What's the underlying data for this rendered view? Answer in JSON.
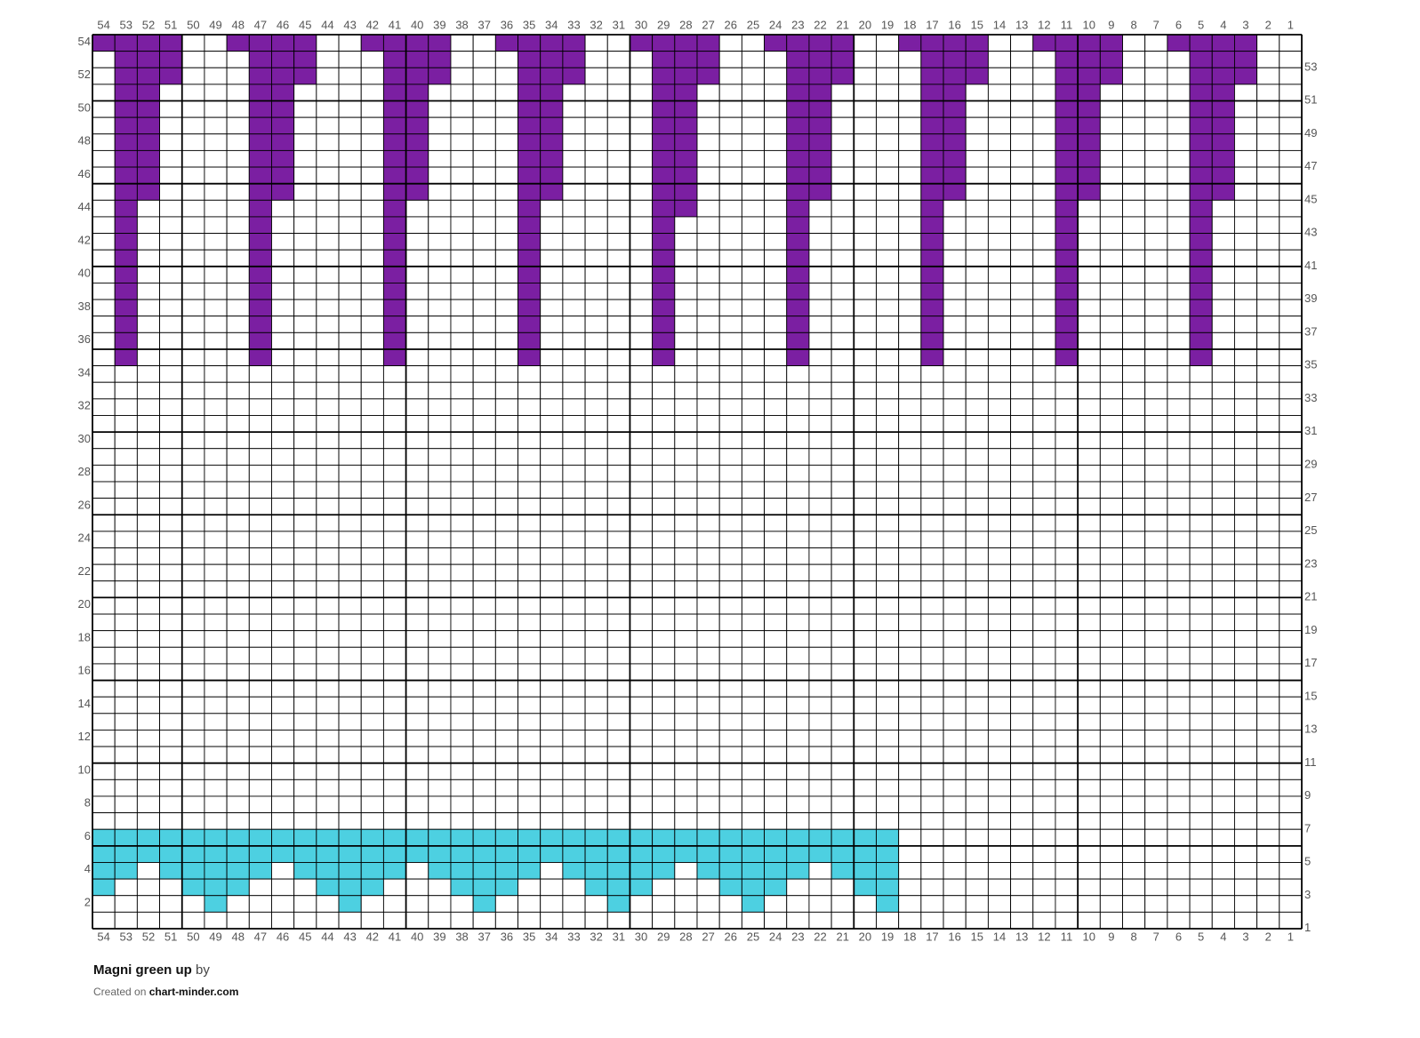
{
  "grid": {
    "col_labels": [
      54,
      53,
      52,
      51,
      50,
      49,
      48,
      47,
      46,
      45,
      44,
      43,
      42,
      41,
      40,
      39,
      38,
      37,
      36,
      35,
      34,
      33,
      32,
      31,
      30,
      29,
      28,
      27,
      26,
      25,
      24,
      23,
      22,
      21,
      20,
      19,
      18,
      17,
      16,
      15,
      14,
      13,
      12,
      11,
      10,
      9,
      8,
      7,
      6,
      5,
      4,
      3,
      2,
      1
    ],
    "row_labels": [
      54,
      53,
      52,
      51,
      50,
      49,
      48,
      47,
      46,
      45,
      44,
      43,
      42,
      41,
      40,
      39,
      38,
      37,
      36,
      35,
      34,
      33,
      32,
      31,
      30,
      29,
      28,
      27,
      26,
      25,
      24,
      23,
      22,
      21,
      20,
      19,
      18,
      17,
      16,
      15,
      14,
      13,
      12,
      11,
      10,
      9,
      8,
      7,
      6,
      5,
      4,
      3,
      2,
      1
    ],
    "colors": {
      "P": "#7b1fa2",
      "C": "#4dd0e1",
      ".": "#ffffff"
    },
    "rows": [
      "PPPP..PPPP..PPPP..PPPP..PPPP..PPPP..PPPP..PPPP..PPPP..",
      ".PPP...PPP...PPP...PPP...PPP...PPP...PPP...PPP...PPP..",
      ".PPP...PPP...PPP...PPP...PPP...PPP...PPP...PPP...PPP..",
      ".PP....PP....PP....PP....PP....PP....PP....PP....PP...",
      ".PP....PP....PP....PP....PP....PP....PP....PP....PP...",
      ".PP....PP....PP....PP....PP....PP....PP....PP....PP...",
      ".PP....PP....PP....PP....PP....PP....PP....PP....PP...",
      ".PP....PP....PP....PP....PP....PP....PP....PP....PP...",
      ".PP....PP....PP....PP....PP....PP....PP....PP....PP...",
      ".PP....PP....PP....PP....PP....PP....PP....PP....PP...",
      ".P.....P.....P.....P.....PP....P.....P.....P.....P....",
      ".P.....P.....P.....P.....P.....P.....P.....P.....P....",
      ".P.....P.....P.....P.....P.....P.....P.....P.....P....",
      ".P.....P.....P.....P.....P.....P.....P.....P.....P....",
      ".P.....P.....P.....P.....P.....P.....P.....P.....P....",
      ".P.....P.....P.....P.....P.....P.....P.....P.....P....",
      ".P.....P.....P.....P.....P.....P.....P.....P.....P....",
      ".P.....P.....P.....P.....P.....P.....P.....P.....P....",
      ".P.....P.....P.....P.....P.....P.....P.....P.....P....",
      ".P.....P.....P.....P.....P.....P.....P.....P.....P....",
      "......................................................",
      "......................................................",
      "......................................................",
      "......................................................",
      "......................................................",
      "......................................................",
      "......................................................",
      "......................................................",
      "......................................................",
      "......................................................",
      "......................................................",
      "......................................................",
      "......................................................",
      "......................................................",
      "......................................................",
      "......................................................",
      "......................................................",
      "......................................................",
      "......................................................",
      "......................................................",
      "......................................................",
      "......................................................",
      "......................................................",
      "......................................................",
      "......................................................",
      "......................................................",
      "......................................................",
      "......................................................",
      "CCCCCCCCCCCCCCCCCCCCCCCCCCCCCCCCCCCC..................",
      "CCCCCCCCCCCCCCCCCCCCCCCCCCCCCCCCCCCC..................",
      "CC.CCCCC.CCCCC.CCCCC.CCCCC.CCCCC.CCC..................",
      "C...CCC...CCC...CCC...CCC...CCC...CC..................",
      ".....C.....C.....C.....C.....C.....C..................",
      "......................................................"
    ]
  },
  "footer": {
    "title": "Magni green up",
    "by": "by",
    "created_on": "Created on",
    "site": "chart-minder.com"
  }
}
